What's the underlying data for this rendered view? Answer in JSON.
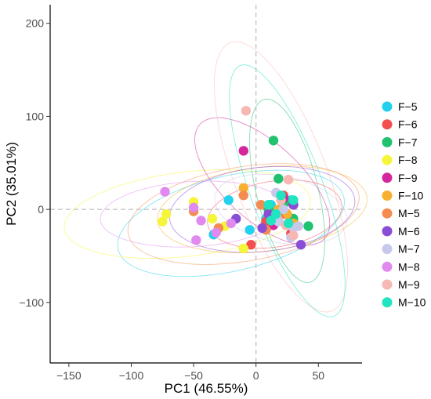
{
  "chart_data": {
    "type": "scatter",
    "title": "",
    "xlabel": "PC1 (46.55%)",
    "ylabel": "PC2 (35.01%)",
    "xlim": [
      -165,
      85
    ],
    "ylim": [
      -165,
      220
    ],
    "x_ticks": [
      -150,
      -100,
      -50,
      0,
      50
    ],
    "y_ticks": [
      200,
      100,
      0,
      -100
    ],
    "x_tick_labels": [
      "−150",
      "−100",
      "−50",
      "0",
      "50"
    ],
    "y_tick_labels": [
      "200",
      "100",
      "0",
      "−100"
    ],
    "reference_lines": {
      "x": 0,
      "y": 0,
      "style": "dashed"
    },
    "grid": false,
    "legend_position": "right",
    "series": [
      {
        "name": "F−5",
        "color": "#22d1ee",
        "points": [
          [
            -22,
            10
          ],
          [
            -34,
            -27
          ],
          [
            -5,
            -22
          ],
          [
            8,
            -10
          ],
          [
            12,
            5
          ],
          [
            28,
            10
          ]
        ],
        "ellipse": {
          "cx": -20,
          "cy": -15,
          "rx": 95,
          "ry": 50,
          "angle": 20
        }
      },
      {
        "name": "F−6",
        "color": "#f54e4e",
        "points": [
          [
            -4,
            -38
          ],
          [
            8,
            -13
          ],
          [
            24,
            -5
          ],
          [
            30,
            5
          ],
          [
            22,
            15
          ],
          [
            28,
            -26
          ]
        ],
        "ellipse": {
          "cx": 15,
          "cy": -5,
          "rx": 55,
          "ry": 35,
          "angle": 15
        }
      },
      {
        "name": "F−7",
        "color": "#1ec26f",
        "points": [
          [
            14,
            74
          ],
          [
            18,
            33
          ],
          [
            10,
            0
          ],
          [
            30,
            -10
          ],
          [
            42,
            -18
          ],
          [
            24,
            8
          ]
        ],
        "ellipse": {
          "cx": 25,
          "cy": 20,
          "rx": 100,
          "ry": 25,
          "angle": -80
        }
      },
      {
        "name": "F−8",
        "color": "#f5f53a",
        "points": [
          [
            -72,
            -5
          ],
          [
            -75,
            -13
          ],
          [
            -50,
            8
          ],
          [
            -35,
            -10
          ],
          [
            -25,
            -18
          ],
          [
            -10,
            -42
          ]
        ],
        "ellipse": {
          "cx": -55,
          "cy": -5,
          "rx": 100,
          "ry": 45,
          "angle": 10
        }
      },
      {
        "name": "F−9",
        "color": "#d6269d",
        "points": [
          [
            -10,
            63
          ],
          [
            22,
            12
          ],
          [
            14,
            -17
          ],
          [
            30,
            5
          ]
        ],
        "ellipse": {
          "cx": 5,
          "cy": 30,
          "rx": 80,
          "ry": 35,
          "angle": -55
        }
      },
      {
        "name": "F−10",
        "color": "#f7b030",
        "points": [
          [
            -10,
            23
          ],
          [
            10,
            -5
          ],
          [
            25,
            -5
          ],
          [
            18,
            0
          ],
          [
            30,
            -15
          ]
        ],
        "ellipse": {
          "cx": 5,
          "cy": 0,
          "rx": 85,
          "ry": 45,
          "angle": 10
        }
      },
      {
        "name": "M−5",
        "color": "#f48c51",
        "points": [
          [
            -50,
            -2
          ],
          [
            -30,
            -20
          ],
          [
            -10,
            15
          ],
          [
            4,
            5
          ],
          [
            8,
            -22
          ],
          [
            18,
            -12
          ]
        ],
        "ellipse": {
          "cx": -10,
          "cy": -5,
          "rx": 95,
          "ry": 50,
          "angle": 15
        }
      },
      {
        "name": "M−6",
        "color": "#8a4ed6",
        "points": [
          [
            -16,
            -10
          ],
          [
            5,
            -20
          ],
          [
            15,
            -8
          ],
          [
            30,
            5
          ],
          [
            36,
            -38
          ],
          [
            10,
            -5
          ]
        ],
        "ellipse": {
          "cx": 5,
          "cy": 0,
          "rx": 75,
          "ry": 45,
          "angle": 10
        }
      },
      {
        "name": "M−7",
        "color": "#c8c8ea",
        "points": [
          [
            16,
            18
          ],
          [
            22,
            0
          ],
          [
            28,
            -30
          ],
          [
            30,
            -20
          ],
          [
            34,
            -18
          ],
          [
            18,
            -13
          ]
        ],
        "ellipse": {
          "cx": 20,
          "cy": 0,
          "rx": 55,
          "ry": 35,
          "angle": -20
        }
      },
      {
        "name": "M−8",
        "color": "#e08af0",
        "points": [
          [
            -73,
            19
          ],
          [
            -50,
            2
          ],
          [
            -44,
            -12
          ],
          [
            -32,
            -25
          ],
          [
            -48,
            -33
          ],
          [
            -20,
            -15
          ]
        ],
        "ellipse": {
          "cx": -50,
          "cy": -5,
          "rx": 75,
          "ry": 35,
          "angle": 5
        }
      },
      {
        "name": "M−9",
        "color": "#f7b8b4",
        "points": [
          [
            -8,
            106
          ],
          [
            26,
            32
          ],
          [
            24,
            -17
          ],
          [
            30,
            -28
          ],
          [
            20,
            10
          ]
        ],
        "ellipse": {
          "cx": 20,
          "cy": 35,
          "rx": 150,
          "ry": 38,
          "angle": -75
        }
      },
      {
        "name": "M−10",
        "color": "#1fe5c0",
        "points": [
          [
            10,
            5
          ],
          [
            16,
            -5
          ],
          [
            20,
            15
          ],
          [
            12,
            -12
          ],
          [
            26,
            -15
          ],
          [
            30,
            10
          ]
        ],
        "ellipse": {
          "cx": 25,
          "cy": 20,
          "rx": 140,
          "ry": 30,
          "angle": -75
        }
      }
    ]
  }
}
